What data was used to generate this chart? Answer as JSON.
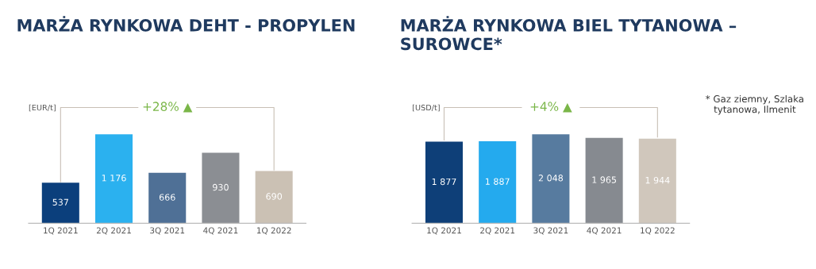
{
  "chart_data": [
    {
      "type": "bar",
      "title": "MARŻA RYNKOWA DEHT - PROPYLEN",
      "ylabel": "[EUR/t]",
      "categories": [
        "1Q 2021",
        "2Q 2021",
        "3Q 2021",
        "4Q 2021",
        "1Q 2022"
      ],
      "values": [
        537,
        1176,
        666,
        930,
        690
      ],
      "colors": [
        "#0b3f7c",
        "#2bb1ef",
        "#4f7096",
        "#8b8e93",
        "#cbc1b4"
      ],
      "data_labels": true,
      "annotations": [
        "+28% ▲"
      ]
    },
    {
      "type": "bar",
      "title": "MARŻA RYNKOWA BIEL TYTANOWA – SUROWCE*",
      "ylabel": "[USD/t]",
      "categories": [
        "1Q 2021",
        "2Q 2021",
        "3Q 2021",
        "4Q 2021",
        "1Q 2022"
      ],
      "values": [
        1877,
        1887,
        2048,
        1965,
        1944
      ],
      "colors": [
        "#0e3f78",
        "#24aaee",
        "#577b9f",
        "#868a90",
        "#d0c7bc"
      ],
      "data_labels": true,
      "annotations": [
        "+4% ▲",
        "* Gaz ziemny, Szlaka tytanowa, Ilmenit"
      ]
    }
  ]
}
